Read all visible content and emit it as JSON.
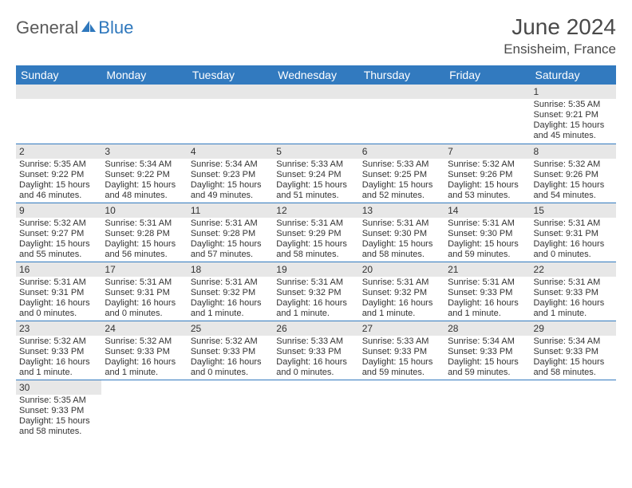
{
  "brand": {
    "general": "General",
    "blue": "Blue"
  },
  "title": "June 2024",
  "location": "Ensisheim, France",
  "colors": {
    "header_bg": "#327abf",
    "header_text": "#ffffff",
    "daynum_bg": "#e7e7e7",
    "row_divider": "#327abf",
    "logo_gray": "#5a5a5a",
    "logo_blue": "#2f78bd"
  },
  "dayHeaders": [
    "Sunday",
    "Monday",
    "Tuesday",
    "Wednesday",
    "Thursday",
    "Friday",
    "Saturday"
  ],
  "weeks": [
    [
      null,
      null,
      null,
      null,
      null,
      null,
      {
        "num": "1",
        "sunrise": "Sunrise: 5:35 AM",
        "sunset": "Sunset: 9:21 PM",
        "daylight": "Daylight: 15 hours and 45 minutes."
      }
    ],
    [
      {
        "num": "2",
        "sunrise": "Sunrise: 5:35 AM",
        "sunset": "Sunset: 9:22 PM",
        "daylight": "Daylight: 15 hours and 46 minutes."
      },
      {
        "num": "3",
        "sunrise": "Sunrise: 5:34 AM",
        "sunset": "Sunset: 9:22 PM",
        "daylight": "Daylight: 15 hours and 48 minutes."
      },
      {
        "num": "4",
        "sunrise": "Sunrise: 5:34 AM",
        "sunset": "Sunset: 9:23 PM",
        "daylight": "Daylight: 15 hours and 49 minutes."
      },
      {
        "num": "5",
        "sunrise": "Sunrise: 5:33 AM",
        "sunset": "Sunset: 9:24 PM",
        "daylight": "Daylight: 15 hours and 51 minutes."
      },
      {
        "num": "6",
        "sunrise": "Sunrise: 5:33 AM",
        "sunset": "Sunset: 9:25 PM",
        "daylight": "Daylight: 15 hours and 52 minutes."
      },
      {
        "num": "7",
        "sunrise": "Sunrise: 5:32 AM",
        "sunset": "Sunset: 9:26 PM",
        "daylight": "Daylight: 15 hours and 53 minutes."
      },
      {
        "num": "8",
        "sunrise": "Sunrise: 5:32 AM",
        "sunset": "Sunset: 9:26 PM",
        "daylight": "Daylight: 15 hours and 54 minutes."
      }
    ],
    [
      {
        "num": "9",
        "sunrise": "Sunrise: 5:32 AM",
        "sunset": "Sunset: 9:27 PM",
        "daylight": "Daylight: 15 hours and 55 minutes."
      },
      {
        "num": "10",
        "sunrise": "Sunrise: 5:31 AM",
        "sunset": "Sunset: 9:28 PM",
        "daylight": "Daylight: 15 hours and 56 minutes."
      },
      {
        "num": "11",
        "sunrise": "Sunrise: 5:31 AM",
        "sunset": "Sunset: 9:28 PM",
        "daylight": "Daylight: 15 hours and 57 minutes."
      },
      {
        "num": "12",
        "sunrise": "Sunrise: 5:31 AM",
        "sunset": "Sunset: 9:29 PM",
        "daylight": "Daylight: 15 hours and 58 minutes."
      },
      {
        "num": "13",
        "sunrise": "Sunrise: 5:31 AM",
        "sunset": "Sunset: 9:30 PM",
        "daylight": "Daylight: 15 hours and 58 minutes."
      },
      {
        "num": "14",
        "sunrise": "Sunrise: 5:31 AM",
        "sunset": "Sunset: 9:30 PM",
        "daylight": "Daylight: 15 hours and 59 minutes."
      },
      {
        "num": "15",
        "sunrise": "Sunrise: 5:31 AM",
        "sunset": "Sunset: 9:31 PM",
        "daylight": "Daylight: 16 hours and 0 minutes."
      }
    ],
    [
      {
        "num": "16",
        "sunrise": "Sunrise: 5:31 AM",
        "sunset": "Sunset: 9:31 PM",
        "daylight": "Daylight: 16 hours and 0 minutes."
      },
      {
        "num": "17",
        "sunrise": "Sunrise: 5:31 AM",
        "sunset": "Sunset: 9:31 PM",
        "daylight": "Daylight: 16 hours and 0 minutes."
      },
      {
        "num": "18",
        "sunrise": "Sunrise: 5:31 AM",
        "sunset": "Sunset: 9:32 PM",
        "daylight": "Daylight: 16 hours and 1 minute."
      },
      {
        "num": "19",
        "sunrise": "Sunrise: 5:31 AM",
        "sunset": "Sunset: 9:32 PM",
        "daylight": "Daylight: 16 hours and 1 minute."
      },
      {
        "num": "20",
        "sunrise": "Sunrise: 5:31 AM",
        "sunset": "Sunset: 9:32 PM",
        "daylight": "Daylight: 16 hours and 1 minute."
      },
      {
        "num": "21",
        "sunrise": "Sunrise: 5:31 AM",
        "sunset": "Sunset: 9:33 PM",
        "daylight": "Daylight: 16 hours and 1 minute."
      },
      {
        "num": "22",
        "sunrise": "Sunrise: 5:31 AM",
        "sunset": "Sunset: 9:33 PM",
        "daylight": "Daylight: 16 hours and 1 minute."
      }
    ],
    [
      {
        "num": "23",
        "sunrise": "Sunrise: 5:32 AM",
        "sunset": "Sunset: 9:33 PM",
        "daylight": "Daylight: 16 hours and 1 minute."
      },
      {
        "num": "24",
        "sunrise": "Sunrise: 5:32 AM",
        "sunset": "Sunset: 9:33 PM",
        "daylight": "Daylight: 16 hours and 1 minute."
      },
      {
        "num": "25",
        "sunrise": "Sunrise: 5:32 AM",
        "sunset": "Sunset: 9:33 PM",
        "daylight": "Daylight: 16 hours and 0 minutes."
      },
      {
        "num": "26",
        "sunrise": "Sunrise: 5:33 AM",
        "sunset": "Sunset: 9:33 PM",
        "daylight": "Daylight: 16 hours and 0 minutes."
      },
      {
        "num": "27",
        "sunrise": "Sunrise: 5:33 AM",
        "sunset": "Sunset: 9:33 PM",
        "daylight": "Daylight: 15 hours and 59 minutes."
      },
      {
        "num": "28",
        "sunrise": "Sunrise: 5:34 AM",
        "sunset": "Sunset: 9:33 PM",
        "daylight": "Daylight: 15 hours and 59 minutes."
      },
      {
        "num": "29",
        "sunrise": "Sunrise: 5:34 AM",
        "sunset": "Sunset: 9:33 PM",
        "daylight": "Daylight: 15 hours and 58 minutes."
      }
    ],
    [
      {
        "num": "30",
        "sunrise": "Sunrise: 5:35 AM",
        "sunset": "Sunset: 9:33 PM",
        "daylight": "Daylight: 15 hours and 58 minutes."
      },
      null,
      null,
      null,
      null,
      null,
      null
    ]
  ]
}
